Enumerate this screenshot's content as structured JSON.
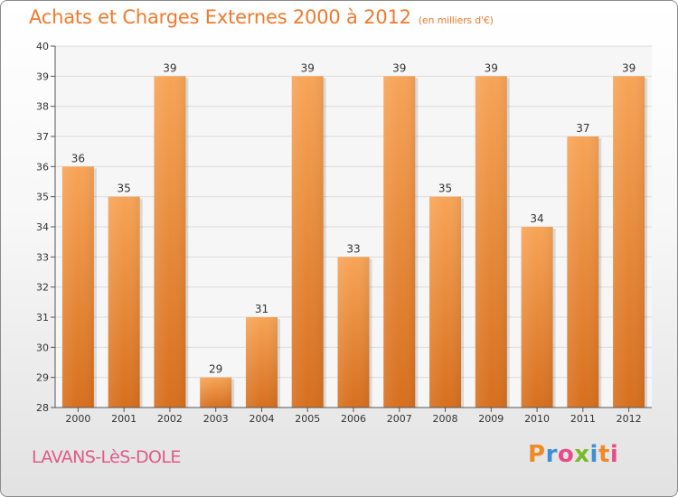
{
  "title": "Achats et Charges Externes 2000 à 2012",
  "subtitle": "(en milliers d'€)",
  "commune": "LAVANS-LèS-DOLE",
  "logo": {
    "letters": [
      "P",
      "r",
      "o",
      "x",
      "i",
      "t",
      "i"
    ],
    "colors": [
      "#f08a24",
      "#3a8fd6",
      "#e94b8a",
      "#7ab929",
      "#3a8fd6",
      "#f08a24",
      "#e94b8a"
    ]
  },
  "colors": {
    "title": "#ef7a2d",
    "commune": "#e05a8a",
    "bar_top": "#f7a457",
    "bar_bottom": "#d76f1e"
  },
  "chart_data": {
    "type": "bar",
    "title": "Achats et Charges Externes 2000 à 2012",
    "subtitle": "(en milliers d'€)",
    "categories": [
      "2000",
      "2001",
      "2002",
      "2003",
      "2004",
      "2005",
      "2006",
      "2007",
      "2008",
      "2009",
      "2010",
      "2011",
      "2012"
    ],
    "values": [
      36,
      35,
      39,
      29,
      31,
      39,
      33,
      39,
      35,
      39,
      34,
      37,
      39
    ],
    "ylim": [
      28,
      40
    ],
    "yticks": [
      28,
      29,
      30,
      31,
      32,
      33,
      34,
      35,
      36,
      37,
      38,
      39,
      40
    ],
    "grid": true,
    "data_labels": true
  }
}
